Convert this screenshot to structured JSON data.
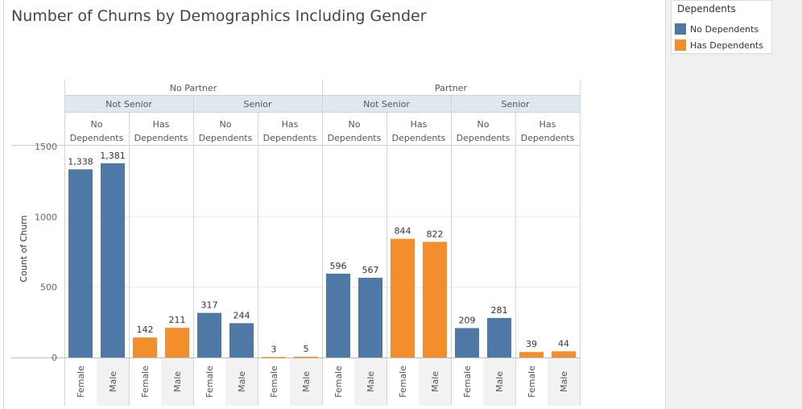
{
  "title": "Number of Churns by Demographics Including Gender",
  "legend": {
    "title": "Dependents",
    "items": [
      {
        "label": "No Dependents",
        "color": "#4e79a7"
      },
      {
        "label": "Has Dependents",
        "color": "#f28e2b"
      }
    ]
  },
  "chart_data": {
    "type": "bar",
    "ylabel": "Count of Churn",
    "ylim": [
      0,
      1500
    ],
    "yticks": [
      0,
      500,
      1000,
      1500
    ],
    "grid": true,
    "legend_placement": "top-right",
    "partner_levels": [
      "No Partner",
      "Partner"
    ],
    "senior_levels": [
      "Not Senior",
      "Senior"
    ],
    "dependent_levels": [
      [
        "No",
        "Dependents"
      ],
      [
        "Has",
        "Dependents"
      ]
    ],
    "genders": [
      "Female",
      "Male"
    ],
    "columns": [
      {
        "partner": "No Partner",
        "senior": "Not Senior",
        "dependents": "No Dependents",
        "values": [
          1338,
          1381
        ],
        "labels": [
          "1,338",
          "1,381"
        ]
      },
      {
        "partner": "No Partner",
        "senior": "Not Senior",
        "dependents": "Has Dependents",
        "values": [
          142,
          211
        ],
        "labels": [
          "142",
          "211"
        ]
      },
      {
        "partner": "No Partner",
        "senior": "Senior",
        "dependents": "No Dependents",
        "values": [
          317,
          244
        ],
        "labels": [
          "317",
          "244"
        ]
      },
      {
        "partner": "No Partner",
        "senior": "Senior",
        "dependents": "Has Dependents",
        "values": [
          3,
          5
        ],
        "labels": [
          "3",
          "5"
        ]
      },
      {
        "partner": "Partner",
        "senior": "Not Senior",
        "dependents": "No Dependents",
        "values": [
          596,
          567
        ],
        "labels": [
          "596",
          "567"
        ]
      },
      {
        "partner": "Partner",
        "senior": "Not Senior",
        "dependents": "Has Dependents",
        "values": [
          844,
          822
        ],
        "labels": [
          "844",
          "822"
        ]
      },
      {
        "partner": "Partner",
        "senior": "Senior",
        "dependents": "No Dependents",
        "values": [
          209,
          281
        ],
        "labels": [
          "209",
          "281"
        ]
      },
      {
        "partner": "Partner",
        "senior": "Senior",
        "dependents": "Has Dependents",
        "values": [
          39,
          44
        ],
        "labels": [
          "39",
          "44"
        ]
      }
    ]
  }
}
